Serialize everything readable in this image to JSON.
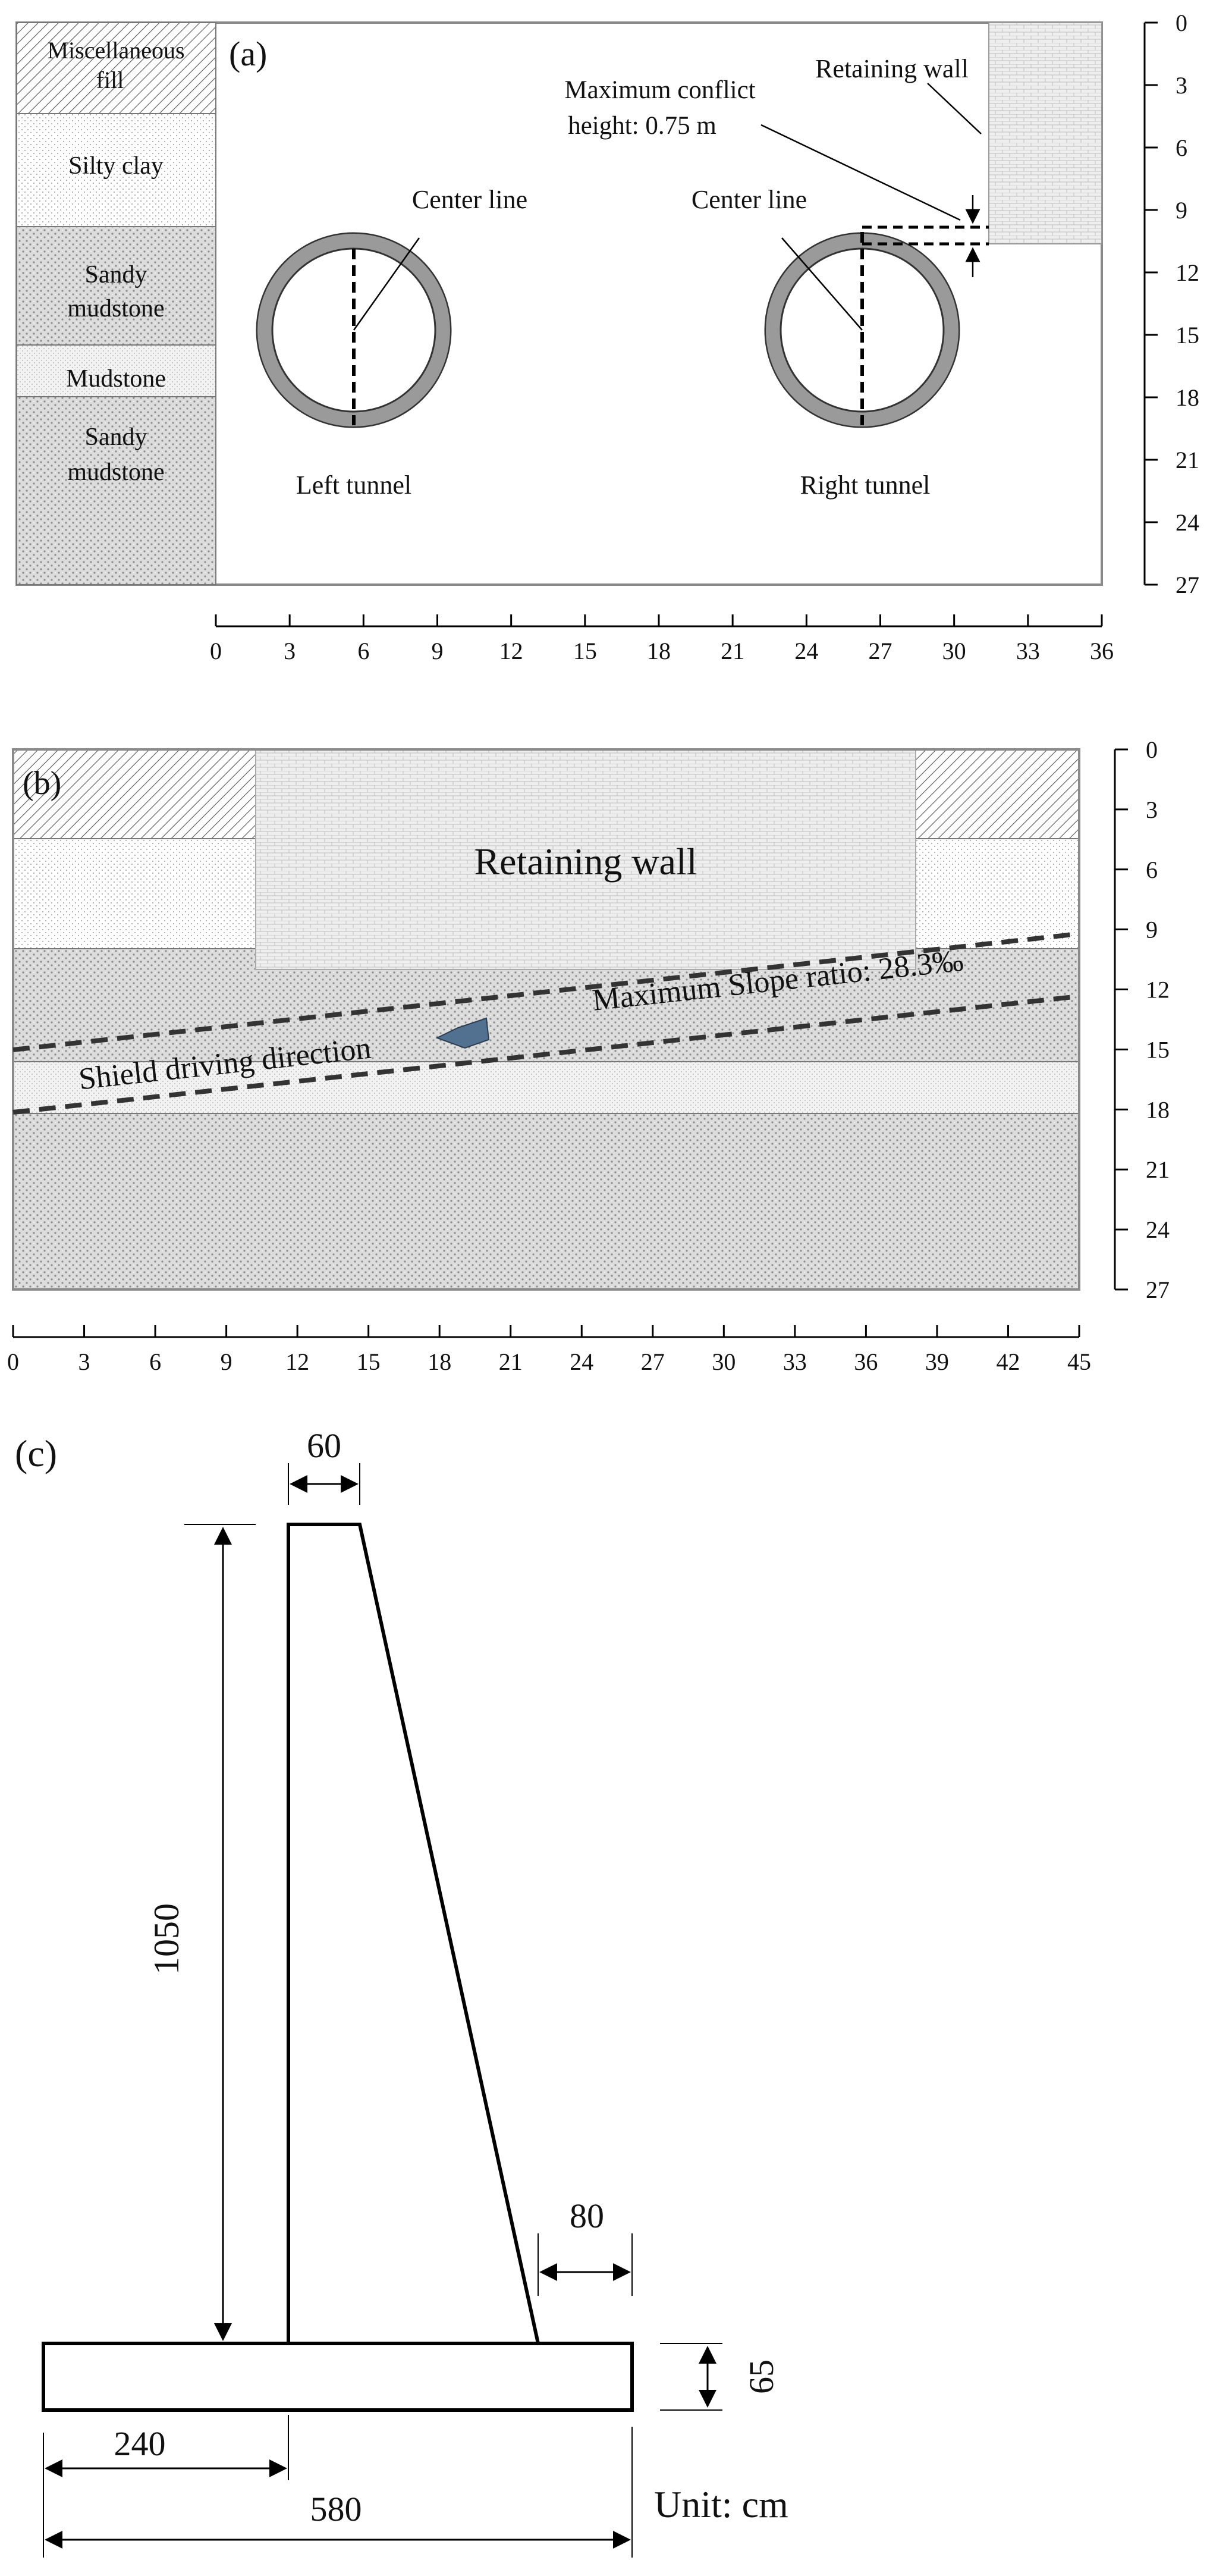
{
  "panel_a": {
    "tag": "(a)",
    "layers": [
      "Miscellaneous fill",
      "Silty clay",
      "Sandy mudstone",
      "Mudstone",
      "Sandy mudstone"
    ],
    "left_centerline_label": "Center line",
    "right_centerline_label": "Center line",
    "left_tunnel_label": "Left tunnel",
    "right_tunnel_label": "Right tunnel",
    "retaining_wall_label": "Retaining wall",
    "conflict_label_line1": "Maximum conflict",
    "conflict_label_line2": "height: 0.75 m",
    "x_ticks": [
      "0",
      "3",
      "6",
      "9",
      "12",
      "15",
      "18",
      "21",
      "24",
      "27",
      "30",
      "33",
      "36"
    ],
    "y_ticks": [
      "0",
      "3",
      "6",
      "9",
      "12",
      "15",
      "18",
      "21",
      "24",
      "27"
    ]
  },
  "panel_b": {
    "tag": "(b)",
    "retaining_wall_label": "Retaining wall",
    "slope_label": "Maximum Slope ratio: 28.3‰",
    "direction_label": "Shield driving direction",
    "x_ticks": [
      "0",
      "3",
      "6",
      "9",
      "12",
      "15",
      "18",
      "21",
      "24",
      "27",
      "30",
      "33",
      "36",
      "39",
      "42",
      "45"
    ],
    "y_ticks": [
      "0",
      "3",
      "6",
      "9",
      "12",
      "15",
      "18",
      "21",
      "24",
      "27"
    ]
  },
  "panel_c": {
    "tag": "(c)",
    "dim_top": "60",
    "dim_height": "1050",
    "dim_toe": "80",
    "dim_base_thickness": "65",
    "dim_heel": "240",
    "dim_total": "580",
    "unit": "Unit: cm"
  },
  "colors": {
    "frame": "#8a8a8a",
    "tunnel_ring": "#9a9a9a",
    "soil_hatch": "#555555"
  }
}
